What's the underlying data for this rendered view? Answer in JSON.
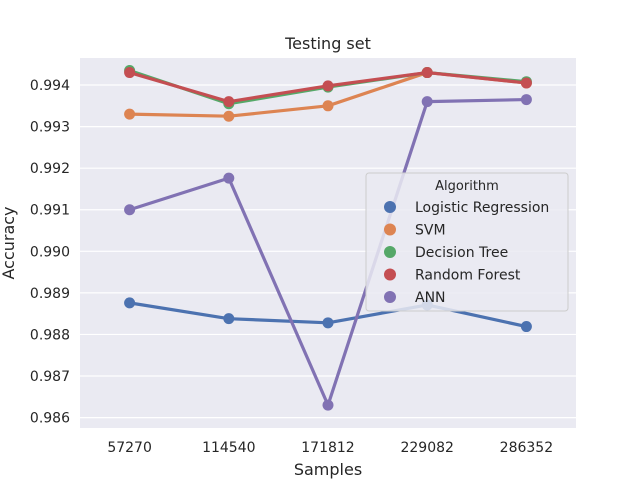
{
  "chart_data": {
    "type": "line",
    "title": "Testing set",
    "xlabel": "Samples",
    "ylabel": "Accuracy",
    "categories": [
      "57270",
      "114540",
      "171812",
      "229082",
      "286352"
    ],
    "ylim": [
      0.98575,
      0.99465
    ],
    "yticks": [
      "0.986",
      "0.987",
      "0.988",
      "0.989",
      "0.990",
      "0.991",
      "0.992",
      "0.993",
      "0.994"
    ],
    "grid": true,
    "legend": {
      "title": "Algorithm",
      "position": "center-right"
    },
    "series": [
      {
        "name": "Logistic Regression",
        "color": "#4c72b0",
        "values": [
          0.98876,
          0.98838,
          0.98828,
          0.98871,
          0.98819
        ]
      },
      {
        "name": "SVM",
        "color": "#dd8452",
        "values": [
          0.9933,
          0.99325,
          0.9935,
          0.9943,
          0.99405
        ]
      },
      {
        "name": "Decision Tree",
        "color": "#55a868",
        "values": [
          0.99435,
          0.99355,
          0.99395,
          0.9943,
          0.99408
        ]
      },
      {
        "name": "Random Forest",
        "color": "#c44e52",
        "values": [
          0.9943,
          0.9936,
          0.99398,
          0.9943,
          0.99405
        ]
      },
      {
        "name": "ANN",
        "color": "#8172b3",
        "values": [
          0.991,
          0.99176,
          0.9863,
          0.9936,
          0.99365
        ]
      }
    ]
  }
}
